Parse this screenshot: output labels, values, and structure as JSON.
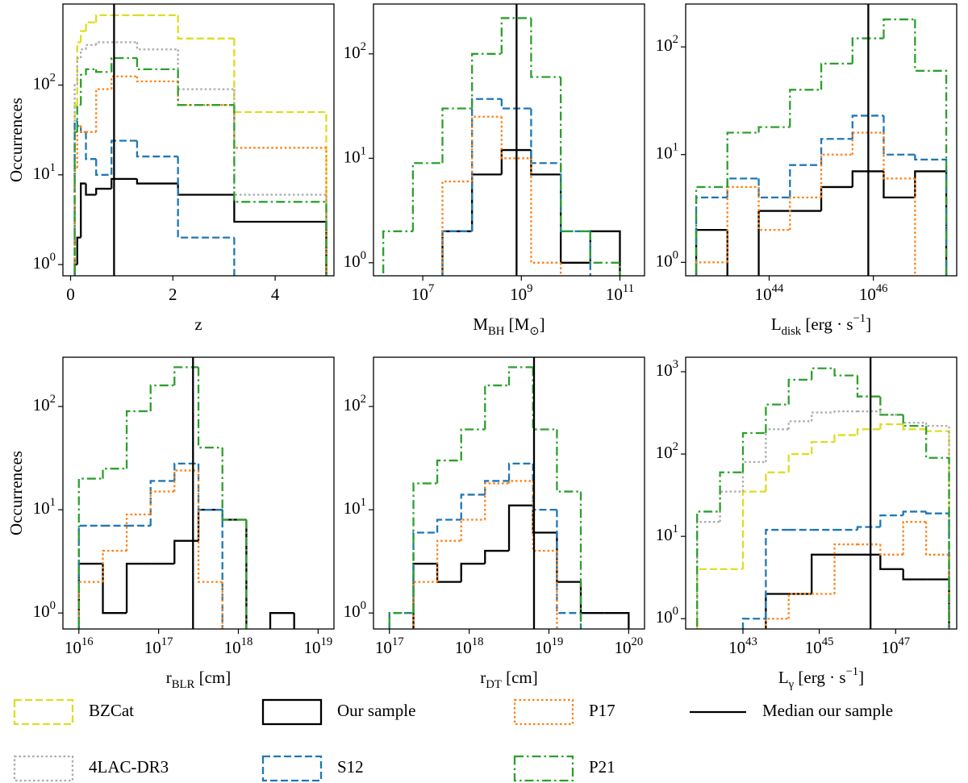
{
  "chart_data": [
    {
      "type": "histogram",
      "xlabel": "z",
      "ylabel": "Occurrences",
      "xscale": "linear",
      "yscale": "log",
      "xlim": [
        -0.15,
        5.15
      ],
      "xticks": [
        0,
        2,
        4
      ],
      "ylim": [
        0.75,
        800
      ],
      "yticks": [
        {
          "value": 1,
          "label": "10^{0}"
        },
        {
          "value": 10,
          "label": "10^{1}"
        },
        {
          "value": 100,
          "label": "10^{2}"
        }
      ],
      "bins": [
        0.08,
        0.13,
        0.2,
        0.3,
        0.5,
        0.8,
        1.3,
        2.1,
        3.2,
        5.0
      ],
      "median": 0.85,
      "series": [
        {
          "name": "BZCat",
          "color": "#dddd22",
          "linestyle": "dashed",
          "values": [
            60,
            300,
            400,
            500,
            600,
            600,
            600,
            330,
            50
          ]
        },
        {
          "name": "4LAC-DR3",
          "color": "#aaaaaa",
          "linestyle": "dotted",
          "values": [
            100,
            200,
            250,
            280,
            300,
            300,
            250,
            90,
            6
          ]
        },
        {
          "name": "Our sample",
          "color": "#000000",
          "linestyle": "solid",
          "values": [
            1,
            2,
            8,
            6,
            7,
            9,
            8,
            6,
            3
          ]
        },
        {
          "name": "S12",
          "color": "#1f77b4",
          "linestyle": "dashed",
          "values": [
            40,
            35,
            30,
            15,
            10,
            24,
            16,
            2,
            0
          ]
        },
        {
          "name": "P17",
          "color": "#ff7f0e",
          "linestyle": "dotted",
          "values": [
            12,
            35,
            30,
            30,
            90,
            125,
            110,
            60,
            20
          ]
        },
        {
          "name": "P21",
          "color": "#2ca02c",
          "linestyle": "dashdot",
          "values": [
            30,
            60,
            130,
            150,
            140,
            200,
            150,
            60,
            5
          ]
        }
      ]
    },
    {
      "type": "histogram",
      "xlabel": "M_{BH} [M_{⊙}]",
      "xscale": "log",
      "yscale": "log",
      "xlim": [
        1000000.0,
        316000000000.0
      ],
      "xticks": [
        {
          "value": 10000000.0,
          "label": "10^{7}"
        },
        {
          "value": 1000000000.0,
          "label": "10^{9}"
        },
        {
          "value": 100000000000.0,
          "label": "10^{11}"
        }
      ],
      "ylim": [
        0.75,
        300
      ],
      "yticks": [
        {
          "value": 1,
          "label": "10^{0}"
        },
        {
          "value": 10,
          "label": "10^{1}"
        },
        {
          "value": 100,
          "label": "10^{2}"
        }
      ],
      "bins": [
        1580000.0,
        6310000.0,
        25100000.0,
        100000000.0,
        398000000.0,
        1580000000.0,
        6310000000.0,
        25100000000.0,
        100000000000.0
      ],
      "median": 800000000.0,
      "series": [
        {
          "name": "Our sample",
          "color": "#000000",
          "linestyle": "solid",
          "values": [
            0,
            0,
            2,
            7,
            12,
            7,
            1,
            2
          ]
        },
        {
          "name": "S12",
          "color": "#1f77b4",
          "linestyle": "dashed",
          "values": [
            0,
            0,
            2,
            37,
            30,
            9,
            2,
            0
          ]
        },
        {
          "name": "P17",
          "color": "#ff7f0e",
          "linestyle": "dotted",
          "values": [
            0,
            0,
            6,
            25,
            10,
            1,
            0,
            0
          ]
        },
        {
          "name": "P21",
          "color": "#2ca02c",
          "linestyle": "dashdot",
          "values": [
            2,
            9,
            30,
            100,
            220,
            60,
            2,
            1
          ]
        }
      ]
    },
    {
      "type": "histogram",
      "xlabel": "L_{disk} [erg · s^{−1}]",
      "xscale": "log",
      "yscale": "log",
      "xlim": [
        2.5e+42,
        3.98e+47
      ],
      "xticks": [
        {
          "value": 1e+44,
          "label": "10^{44}"
        },
        {
          "value": 1e+46,
          "label": "10^{46}"
        }
      ],
      "ylim": [
        0.75,
        250
      ],
      "yticks": [
        {
          "value": 1,
          "label": "10^{0}"
        },
        {
          "value": 10,
          "label": "10^{1}"
        },
        {
          "value": 100,
          "label": "10^{2}"
        }
      ],
      "bins": [
        3.98e+42,
        1.58e+43,
        6.31e+43,
        2.51e+44,
        1e+45,
        3.98e+45,
        1.58e+46,
        6.31e+46,
        2.51e+47
      ],
      "median": 8e+45,
      "series": [
        {
          "name": "Our sample",
          "color": "#000000",
          "linestyle": "solid",
          "values": [
            2,
            0,
            3,
            3,
            5,
            7,
            4,
            7
          ]
        },
        {
          "name": "S12",
          "color": "#1f77b4",
          "linestyle": "dashed",
          "values": [
            4,
            6,
            4,
            8,
            14,
            23,
            10,
            9
          ]
        },
        {
          "name": "P17",
          "color": "#ff7f0e",
          "linestyle": "dotted",
          "values": [
            1,
            5,
            2,
            4,
            10,
            16,
            6,
            0
          ]
        },
        {
          "name": "P21",
          "color": "#2ca02c",
          "linestyle": "dashdot",
          "values": [
            5,
            16,
            18,
            40,
            70,
            120,
            180,
            60
          ]
        }
      ]
    },
    {
      "type": "histogram",
      "xlabel": "r_{BLR} [cm]",
      "ylabel": "Occurrences",
      "xscale": "log",
      "yscale": "log",
      "xlim": [
        6310000000000000.0,
        1.58e+19
      ],
      "xticks": [
        {
          "value": 1e+16,
          "label": "10^{16}"
        },
        {
          "value": 1e+17,
          "label": "10^{17}"
        },
        {
          "value": 1e+18,
          "label": "10^{18}"
        },
        {
          "value": 1e+19,
          "label": "10^{19}"
        }
      ],
      "ylim": [
        0.7,
        300
      ],
      "yticks": [
        {
          "value": 1,
          "label": "10^{0}"
        },
        {
          "value": 10,
          "label": "10^{1}"
        },
        {
          "value": 100,
          "label": "10^{2}"
        }
      ],
      "bins": [
        1e+16,
        2e+16,
        3.98e+16,
        7.94e+16,
        1.58e+17,
        3.16e+17,
        6.31e+17,
        1.26e+18,
        2.51e+18,
        5.01e+18,
        1e+19
      ],
      "median": 2.7e+17,
      "series": [
        {
          "name": "Our sample",
          "color": "#000000",
          "linestyle": "solid",
          "values": [
            3,
            1,
            3,
            3,
            5,
            10,
            8,
            0,
            1,
            0
          ]
        },
        {
          "name": "S12",
          "color": "#1f77b4",
          "linestyle": "dashed",
          "values": [
            7,
            7,
            7,
            19,
            28,
            10,
            0,
            0,
            0,
            0
          ]
        },
        {
          "name": "P17",
          "color": "#ff7f0e",
          "linestyle": "dotted",
          "values": [
            2,
            4,
            9,
            15,
            24,
            2,
            0,
            0,
            0,
            0
          ]
        },
        {
          "name": "P21",
          "color": "#2ca02c",
          "linestyle": "dashdot",
          "values": [
            20,
            25,
            90,
            160,
            240,
            40,
            8,
            0,
            0,
            0
          ]
        }
      ]
    },
    {
      "type": "histogram",
      "xlabel": "r_{DT} [cm]",
      "xscale": "log",
      "yscale": "log",
      "xlim": [
        6.31e+16,
        1.58e+20
      ],
      "xticks": [
        {
          "value": 1e+17,
          "label": "10^{17}"
        },
        {
          "value": 1e+18,
          "label": "10^{18}"
        },
        {
          "value": 1e+19,
          "label": "10^{19}"
        },
        {
          "value": 1e+20,
          "label": "10^{20}"
        }
      ],
      "ylim": [
        0.7,
        300
      ],
      "yticks": [
        {
          "value": 1,
          "label": "10^{0}"
        },
        {
          "value": 10,
          "label": "10^{1}"
        },
        {
          "value": 100,
          "label": "10^{2}"
        }
      ],
      "bins": [
        1e+17,
        2e+17,
        3.98e+17,
        7.94e+17,
        1.58e+18,
        3.16e+18,
        6.31e+18,
        1.26e+19,
        2.51e+19,
        5.01e+19,
        1e+20
      ],
      "median": 6.5e+18,
      "series": [
        {
          "name": "Our sample",
          "color": "#000000",
          "linestyle": "solid",
          "values": [
            0,
            3,
            2,
            3,
            4,
            11,
            6,
            2,
            1,
            1
          ]
        },
        {
          "name": "S12",
          "color": "#1f77b4",
          "linestyle": "dashed",
          "values": [
            1,
            6,
            8,
            14,
            19,
            28,
            10,
            1,
            0,
            0
          ]
        },
        {
          "name": "P17",
          "color": "#ff7f0e",
          "linestyle": "dotted",
          "values": [
            0,
            2,
            5,
            8,
            18,
            19,
            4,
            0,
            0,
            0
          ]
        },
        {
          "name": "P21",
          "color": "#2ca02c",
          "linestyle": "dashdot",
          "values": [
            1,
            18,
            30,
            60,
            160,
            240,
            60,
            15,
            0,
            0
          ]
        }
      ]
    },
    {
      "type": "histogram",
      "xlabel": "L_{γ} [erg · s^{−1}]",
      "xscale": "log",
      "yscale": "log",
      "xlim": [
        3.16e+41,
        3.98e+48
      ],
      "xticks": [
        {
          "value": 1e+43,
          "label": "10^{43}"
        },
        {
          "value": 1e+45,
          "label": "10^{45}"
        },
        {
          "value": 1e+47,
          "label": "10^{47}"
        }
      ],
      "ylim": [
        0.75,
        1500
      ],
      "yticks": [
        {
          "value": 1,
          "label": "10^{0}"
        },
        {
          "value": 10,
          "label": "10^{1}"
        },
        {
          "value": 100,
          "label": "10^{2}"
        },
        {
          "value": 1000,
          "label": "10^{3}"
        }
      ],
      "bins": [
        6.31e+41,
        2.51e+42,
        1e+43,
        3.98e+43,
        1.58e+44,
        6.31e+44,
        2.51e+45,
        1e+46,
        3.98e+46,
        1.58e+47,
        6.31e+47,
        2.51e+48
      ],
      "median": 2.2e+46,
      "series": [
        {
          "name": "BZCat",
          "color": "#dddd22",
          "linestyle": "dashed",
          "values": [
            4,
            4,
            35,
            60,
            100,
            140,
            170,
            200,
            230,
            200,
            190
          ]
        },
        {
          "name": "4LAC-DR3",
          "color": "#aaaaaa",
          "linestyle": "dotted",
          "values": [
            15,
            35,
            80,
            200,
            250,
            320,
            330,
            330,
            300,
            240,
            220
          ]
        },
        {
          "name": "Our sample",
          "color": "#000000",
          "linestyle": "solid",
          "values": [
            0,
            0,
            0,
            2,
            2,
            6,
            6,
            6,
            4,
            3,
            3
          ]
        },
        {
          "name": "S12",
          "color": "#1f77b4",
          "linestyle": "dashed",
          "values": [
            0,
            0,
            1,
            12,
            12,
            12,
            12,
            13,
            18,
            20,
            19
          ]
        },
        {
          "name": "P17",
          "color": "#ff7f0e",
          "linestyle": "dotted",
          "values": [
            0,
            0,
            0,
            1,
            2,
            2,
            8,
            8,
            6,
            15,
            6
          ]
        },
        {
          "name": "P21",
          "color": "#2ca02c",
          "linestyle": "dashdot",
          "values": [
            20,
            60,
            180,
            400,
            800,
            1100,
            900,
            500,
            300,
            220,
            90
          ]
        }
      ]
    }
  ],
  "legend": {
    "median_label": "Median our sample"
  }
}
